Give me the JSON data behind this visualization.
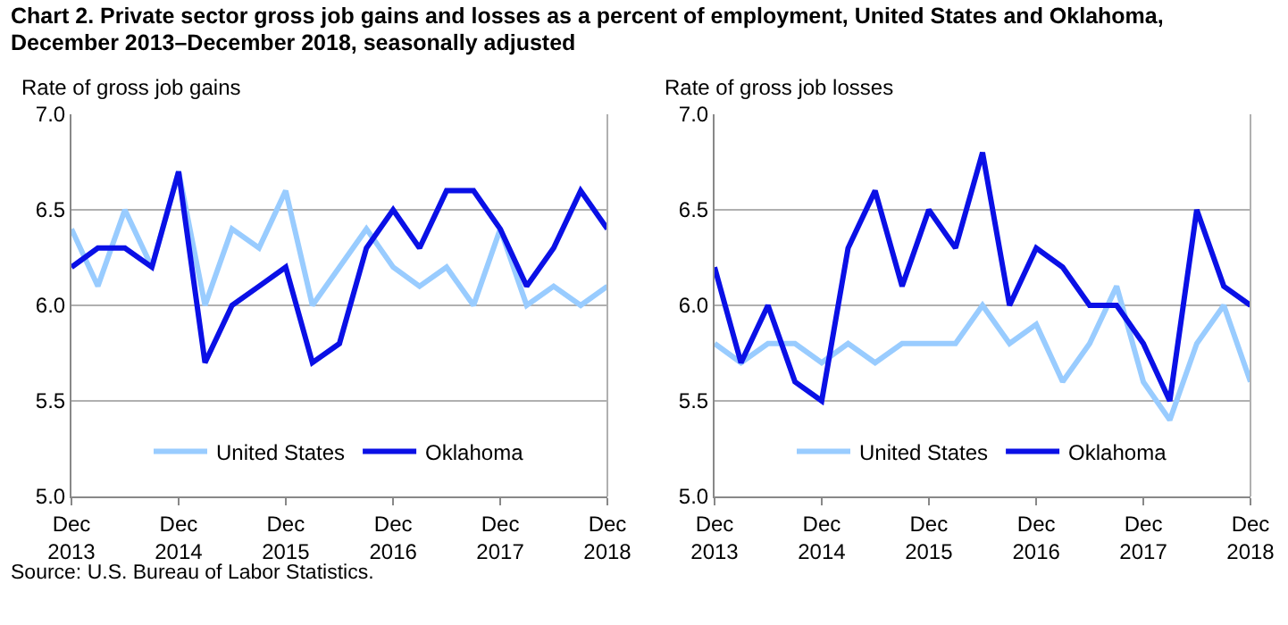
{
  "chart_data": [
    {
      "type": "line",
      "title": "Chart 2. Private sector gross job gains and losses as a percent of employment, United States and Oklahoma, December 2013–December 2018, seasonally adjusted",
      "ylabel": "Rate of gross job gains",
      "annotations": [
        "Source: U.S. Bureau of Labor Statistics."
      ],
      "x": [
        "2013-12",
        "2014-03",
        "2014-06",
        "2014-09",
        "2014-12",
        "2015-03",
        "2015-06",
        "2015-09",
        "2015-12",
        "2016-03",
        "2016-06",
        "2016-09",
        "2016-12",
        "2017-03",
        "2017-06",
        "2017-09",
        "2017-12",
        "2018-03",
        "2018-06",
        "2018-09",
        "2018-12"
      ],
      "series": [
        {
          "name": "United States",
          "color": "#99ccff",
          "values": [
            6.4,
            6.1,
            6.5,
            6.2,
            6.7,
            6.0,
            6.4,
            6.3,
            6.6,
            6.0,
            6.2,
            6.4,
            6.2,
            6.1,
            6.2,
            6.0,
            6.4,
            6.0,
            6.1,
            6.0,
            6.1
          ]
        },
        {
          "name": "Oklahoma",
          "color": "#0a10e6",
          "values": [
            6.2,
            6.3,
            6.3,
            6.2,
            6.7,
            5.7,
            6.0,
            6.1,
            6.2,
            5.7,
            5.8,
            6.3,
            6.5,
            6.3,
            6.6,
            6.6,
            6.4,
            6.1,
            6.3,
            6.6,
            6.4
          ]
        }
      ],
      "xlim": [
        "2013-12",
        "2018-12"
      ],
      "xticks": [
        {
          "value": "2013-12",
          "label": "Dec 2013"
        },
        {
          "value": "2014-12",
          "label": "Dec 2014"
        },
        {
          "value": "2015-12",
          "label": "Dec 2015"
        },
        {
          "value": "2016-12",
          "label": "Dec 2016"
        },
        {
          "value": "2017-12",
          "label": "Dec 2017"
        },
        {
          "value": "2018-12",
          "label": "Dec 2018"
        }
      ],
      "ylim": [
        5.0,
        7.0
      ],
      "yticks": [
        {
          "value": 5,
          "label": "5.0"
        },
        {
          "value": 5.5,
          "label": "5.5"
        },
        {
          "value": 6,
          "label": "6.0"
        },
        {
          "value": 6.5,
          "label": "6.5"
        },
        {
          "value": 7,
          "label": "7.0"
        }
      ],
      "grid": "y",
      "legend": "bottom",
      "marker": "none",
      "line_style": "solid"
    },
    {
      "type": "line",
      "ylabel": "Rate of gross job losses",
      "x": [
        "2013-12",
        "2014-03",
        "2014-06",
        "2014-09",
        "2014-12",
        "2015-03",
        "2015-06",
        "2015-09",
        "2015-12",
        "2016-03",
        "2016-06",
        "2016-09",
        "2016-12",
        "2017-03",
        "2017-06",
        "2017-09",
        "2017-12",
        "2018-03",
        "2018-06",
        "2018-09",
        "2018-12"
      ],
      "series": [
        {
          "name": "United States",
          "color": "#99ccff",
          "values": [
            5.8,
            5.7,
            5.8,
            5.8,
            5.7,
            5.8,
            5.7,
            5.8,
            5.8,
            5.8,
            6.0,
            5.8,
            5.9,
            5.6,
            5.8,
            6.1,
            5.6,
            5.4,
            5.8,
            6.0,
            5.6
          ]
        },
        {
          "name": "Oklahoma",
          "color": "#0a10e6",
          "values": [
            6.2,
            5.7,
            6.0,
            5.6,
            5.5,
            6.3,
            6.6,
            6.1,
            6.5,
            6.3,
            6.8,
            6.0,
            6.3,
            6.2,
            6.0,
            6.0,
            5.8,
            5.5,
            6.5,
            6.1,
            6.0
          ]
        }
      ],
      "xlim": [
        "2013-12",
        "2018-12"
      ],
      "xticks": [
        {
          "value": "2013-12",
          "label": "Dec 2013"
        },
        {
          "value": "2014-12",
          "label": "Dec 2014"
        },
        {
          "value": "2015-12",
          "label": "Dec 2015"
        },
        {
          "value": "2016-12",
          "label": "Dec 2016"
        },
        {
          "value": "2017-12",
          "label": "Dec 2017"
        },
        {
          "value": "2018-12",
          "label": "Dec 2018"
        }
      ],
      "ylim": [
        5.0,
        7.0
      ],
      "yticks": [
        {
          "value": 5,
          "label": "5.0"
        },
        {
          "value": 5.5,
          "label": "5.5"
        },
        {
          "value": 6,
          "label": "6.0"
        },
        {
          "value": 6.5,
          "label": "6.5"
        },
        {
          "value": 7,
          "label": "7.0"
        }
      ],
      "grid": "y",
      "legend": "bottom",
      "marker": "none",
      "line_style": "solid"
    }
  ]
}
